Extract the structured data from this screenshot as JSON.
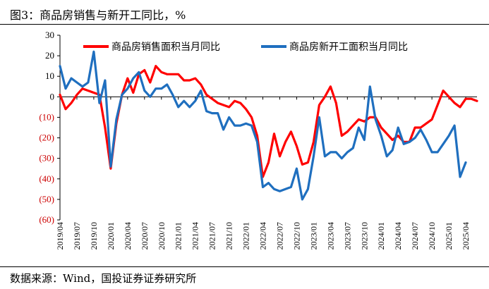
{
  "chart_data": {
    "type": "line",
    "title": "图3：商品房销售与新开工同比，%",
    "source": "数据来源：Wind，国投证券证券研究所",
    "xlabel": "",
    "ylabel": "",
    "ylim": [
      -60,
      30
    ],
    "yticks": [
      30,
      20,
      10,
      0,
      -10,
      -20,
      -30,
      -40,
      -50,
      -60
    ],
    "ytick_labels": [
      "30",
      "20",
      "10",
      "0",
      "(10)",
      "(20)",
      "(30)",
      "(40)",
      "(50)",
      "(60)"
    ],
    "negative_tick_color": "#cc0000",
    "positive_tick_color": "#000000",
    "grid": false,
    "legend_position": "top-right",
    "x_tick_labels": [
      "2019/04",
      "2019/07",
      "2019/10",
      "2020/01",
      "2020/04",
      "2020/07",
      "2020/10",
      "2021/01",
      "2021/04",
      "2021/07",
      "2021/10",
      "2022/01",
      "2022/04",
      "2022/07",
      "2022/10",
      "2023/01",
      "2023/04",
      "2023/07",
      "2023/10",
      "2024/01",
      "2024/04",
      "2024/07",
      "2024/10",
      "2025/01",
      "2025/04"
    ],
    "x_start": "2019/04",
    "x_end": "2025/06",
    "series": [
      {
        "name": "商品房销售面积当月同比",
        "color": "#ff0000",
        "values": [
          1,
          -6,
          -3,
          1,
          4,
          3,
          2,
          1,
          -15,
          -35,
          -13,
          1,
          9,
          2,
          11,
          13,
          7,
          15,
          12,
          11,
          11,
          11,
          8,
          8,
          9,
          6,
          1,
          -1,
          -3,
          -4,
          -5,
          -2,
          -3,
          -6,
          -10,
          -19,
          -39,
          -32,
          -18,
          -29,
          -22,
          -17,
          -24,
          -33,
          -32,
          -22,
          -4,
          0,
          5,
          -3,
          -19,
          -17,
          -14,
          -11,
          -12,
          -10,
          -10,
          -15,
          -18,
          -21,
          -19,
          -22,
          -22,
          -15,
          -15,
          -13,
          -11,
          -4,
          3,
          0,
          -3,
          -5,
          -1,
          -1,
          -2
        ]
      },
      {
        "name": "商品房新开工面积当月同比",
        "color": "#1f6fbf",
        "values": [
          15,
          4,
          9,
          7,
          5,
          7,
          22,
          -3,
          8,
          -34,
          -11,
          1,
          4,
          9,
          12,
          3,
          0,
          4,
          4,
          6,
          1,
          -5,
          -2,
          -5,
          -2,
          3,
          -7,
          -8,
          -8,
          -16,
          -10,
          -14,
          -14,
          -13,
          -14,
          -22,
          -44,
          -42,
          -45,
          -46,
          -45,
          -44,
          -35,
          -50,
          -45,
          -29,
          -10,
          -29,
          -27,
          -27,
          -30,
          -27,
          -25,
          -15,
          -21,
          5,
          -11,
          -19,
          -29,
          -26,
          -15,
          -23,
          -22,
          -20,
          -16,
          -21,
          -27,
          -27,
          -23,
          -19,
          -14,
          -39,
          -32
        ]
      }
    ]
  }
}
